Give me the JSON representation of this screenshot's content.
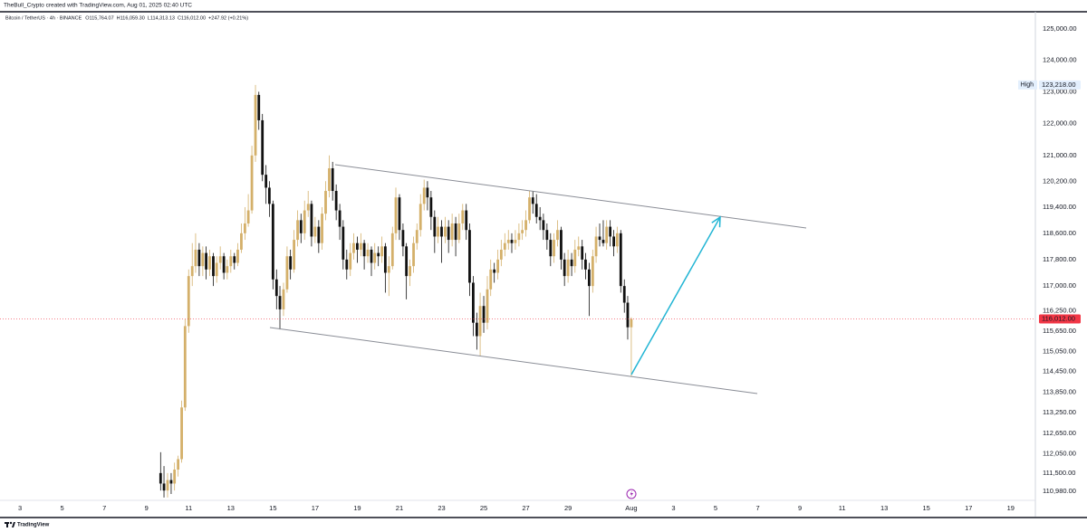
{
  "header": "TheBull_Crypto created with TradingView.com, Aug 01, 2025 02:40 UTC",
  "footer": "TradingView",
  "chart_data": {
    "type": "candlestick",
    "title": "Bitcoin / TetherUS · 4h · BINANCE",
    "ohlc_labels": [
      "O115,764.07",
      "H116,059.30",
      "L114,313.13",
      "C116,012.00",
      "+247.92 (+0.21%)"
    ],
    "up_color": "#d4b06a",
    "down_color": "#111111",
    "log_scale": true,
    "grid": false,
    "xlim": [
      2.05,
      51.17
    ],
    "xticks": [
      3,
      5,
      7,
      9,
      11,
      13,
      15,
      17,
      19,
      21,
      23,
      25,
      27,
      29,
      {
        "value": 32,
        "label": "Aug"
      },
      {
        "value": 34,
        "label": "3"
      },
      {
        "value": 36,
        "label": "5"
      },
      {
        "value": 38,
        "label": "7"
      },
      {
        "value": 40,
        "label": "9"
      },
      {
        "value": 42,
        "label": "11"
      },
      {
        "value": 44,
        "label": "13"
      },
      {
        "value": 46,
        "label": "15"
      },
      {
        "value": 48,
        "label": "17"
      },
      {
        "value": 50,
        "label": "19"
      }
    ],
    "ylim": [
      110720,
      125530
    ],
    "yticks": [
      {
        "value": 125000,
        "label": "125,000.00"
      },
      {
        "value": 124000,
        "label": "124,000.00"
      },
      {
        "value": 123000,
        "label": "123,000.00"
      },
      {
        "value": 122000,
        "label": "122,000.00"
      },
      {
        "value": 121000,
        "label": "121,000.00"
      },
      {
        "value": 120200,
        "label": "120,200.00"
      },
      {
        "value": 119400,
        "label": "119,400.00"
      },
      {
        "value": 118600,
        "label": "118,600.00"
      },
      {
        "value": 117800,
        "label": "117,800.00"
      },
      {
        "value": 117000,
        "label": "117,000.00"
      },
      {
        "value": 116250,
        "label": "116,250.00"
      },
      {
        "value": 115650,
        "label": "115,650.00"
      },
      {
        "value": 115050,
        "label": "115,050.00"
      },
      {
        "value": 114450,
        "label": "114,450.00"
      },
      {
        "value": 113850,
        "label": "113,850.00"
      },
      {
        "value": 113250,
        "label": "113,250.00"
      },
      {
        "value": 112650,
        "label": "112,650.00"
      },
      {
        "value": 112050,
        "label": "112,050.00"
      },
      {
        "value": 111500,
        "label": "111,500.00"
      },
      {
        "value": 110980,
        "label": "110,980.00"
      }
    ],
    "price_markers": [
      {
        "name": "High",
        "value": 123218,
        "label": "123,218.00",
        "color": "#e3effd",
        "text_color": "#131722"
      },
      {
        "value": 116012,
        "label": "116,012.00",
        "color": "#f23645",
        "text_color": "#ffffff"
      }
    ],
    "x": [
      9.67,
      9.83,
      10,
      10.17,
      10.33,
      10.5,
      10.67,
      10.83,
      11,
      11.17,
      11.33,
      11.5,
      11.67,
      11.83,
      12,
      12.17,
      12.33,
      12.5,
      12.67,
      12.83,
      13,
      13.17,
      13.33,
      13.5,
      13.67,
      13.83,
      14,
      14.17,
      14.33,
      14.5,
      14.67,
      14.83,
      15,
      15.17,
      15.33,
      15.5,
      15.67,
      15.83,
      16,
      16.17,
      16.33,
      16.5,
      16.67,
      16.83,
      17,
      17.17,
      17.33,
      17.5,
      17.67,
      17.83,
      18,
      18.17,
      18.33,
      18.5,
      18.67,
      18.83,
      19,
      19.17,
      19.33,
      19.5,
      19.67,
      19.83,
      20,
      20.17,
      20.33,
      20.5,
      20.67,
      20.83,
      21,
      21.17,
      21.33,
      21.5,
      21.67,
      21.83,
      22,
      22.17,
      22.33,
      22.5,
      22.67,
      22.83,
      23,
      23.17,
      23.33,
      23.5,
      23.67,
      23.83,
      24,
      24.17,
      24.33,
      24.5,
      24.67,
      24.83,
      25,
      25.17,
      25.33,
      25.5,
      25.67,
      25.83,
      26,
      26.17,
      26.33,
      26.5,
      26.67,
      26.83,
      27,
      27.17,
      27.33,
      27.5,
      27.67,
      27.83,
      28,
      28.17,
      28.33,
      28.5,
      28.67,
      28.83,
      29,
      29.17,
      29.33,
      29.5,
      29.67,
      29.83,
      30,
      30.17,
      30.33,
      30.5,
      30.67,
      30.83,
      31,
      31.17,
      31.33,
      31.5,
      31.67,
      31.83,
      32
    ],
    "values": [
      [
        111500,
        112100,
        111000,
        111200
      ],
      [
        111200,
        111700,
        110800,
        111000
      ],
      [
        111000,
        111500,
        110800,
        111300
      ],
      [
        111300,
        111500,
        110900,
        111200
      ],
      [
        111200,
        111800,
        111000,
        111600
      ],
      [
        111600,
        112000,
        111400,
        111900
      ],
      [
        111900,
        113600,
        111800,
        113400
      ],
      [
        113400,
        116000,
        113300,
        115800
      ],
      [
        115800,
        117500,
        115600,
        117300
      ],
      [
        117300,
        118300,
        117000,
        117600
      ],
      [
        117600,
        118600,
        117400,
        118100
      ],
      [
        118100,
        118300,
        117300,
        117600
      ],
      [
        117600,
        118200,
        117300,
        118000
      ],
      [
        118000,
        118200,
        117200,
        117500
      ],
      [
        117500,
        118100,
        117300,
        117900
      ],
      [
        117900,
        118000,
        117000,
        117300
      ],
      [
        117300,
        117900,
        117100,
        117700
      ],
      [
        117700,
        118200,
        117500,
        117900
      ],
      [
        117900,
        118000,
        117200,
        117400
      ],
      [
        117400,
        117800,
        117200,
        117600
      ],
      [
        117600,
        118100,
        117400,
        117900
      ],
      [
        117900,
        118000,
        117500,
        117700
      ],
      [
        117700,
        118300,
        117600,
        118100
      ],
      [
        118100,
        118900,
        118000,
        118600
      ],
      [
        118600,
        119400,
        118400,
        118900
      ],
      [
        118900,
        119800,
        118800,
        119300
      ],
      [
        119300,
        121300,
        119200,
        121000
      ],
      [
        121000,
        123218,
        120800,
        122900
      ],
      [
        122900,
        123000,
        121800,
        122100
      ],
      [
        122100,
        122300,
        120200,
        120400
      ],
      [
        120400,
        120700,
        119500,
        120000
      ],
      [
        120000,
        120200,
        119100,
        119500
      ],
      [
        119500,
        119600,
        116900,
        117200
      ],
      [
        117200,
        117500,
        116300,
        116700
      ],
      [
        116700,
        117000,
        115700,
        116300
      ],
      [
        116300,
        117100,
        116100,
        116900
      ],
      [
        116900,
        118200,
        116800,
        117900
      ],
      [
        117900,
        118100,
        117200,
        117500
      ],
      [
        117500,
        118700,
        117400,
        118400
      ],
      [
        118400,
        119300,
        118200,
        119000
      ],
      [
        119000,
        119200,
        118300,
        118600
      ],
      [
        118600,
        119600,
        118400,
        119300
      ],
      [
        119300,
        119900,
        119100,
        119500
      ],
      [
        119500,
        119600,
        118200,
        118500
      ],
      [
        118500,
        119100,
        118300,
        118800
      ],
      [
        118800,
        119000,
        118000,
        118300
      ],
      [
        118300,
        119400,
        118100,
        119200
      ],
      [
        119200,
        120200,
        119000,
        119900
      ],
      [
        119900,
        121000,
        119700,
        120600
      ],
      [
        120600,
        120800,
        119600,
        119900
      ],
      [
        119900,
        120100,
        119000,
        119300
      ],
      [
        119300,
        119500,
        118400,
        118800
      ],
      [
        118800,
        119000,
        117500,
        117800
      ],
      [
        117800,
        118100,
        117200,
        117500
      ],
      [
        117500,
        118300,
        117300,
        118000
      ],
      [
        118000,
        118600,
        117800,
        118300
      ],
      [
        118300,
        118500,
        117700,
        118100
      ],
      [
        118100,
        118600,
        117900,
        118300
      ],
      [
        118300,
        118400,
        117500,
        117900
      ],
      [
        117900,
        118300,
        117700,
        118100
      ],
      [
        118100,
        118200,
        117300,
        117700
      ],
      [
        117700,
        118300,
        117500,
        118000
      ],
      [
        118000,
        118200,
        117600,
        117900
      ],
      [
        117900,
        118500,
        117700,
        118200
      ],
      [
        118200,
        118300,
        116800,
        117400
      ],
      [
        117400,
        117900,
        116700,
        117600
      ],
      [
        117600,
        118800,
        117500,
        118600
      ],
      [
        118600,
        120000,
        118400,
        119700
      ],
      [
        119700,
        119800,
        118400,
        118700
      ],
      [
        118700,
        118900,
        117900,
        118200
      ],
      [
        118200,
        118300,
        116600,
        117300
      ],
      [
        117300,
        117800,
        117000,
        117600
      ],
      [
        117600,
        118500,
        117400,
        118300
      ],
      [
        118300,
        118900,
        118100,
        118700
      ],
      [
        118700,
        119800,
        118500,
        119500
      ],
      [
        119500,
        120250,
        119300,
        120000
      ],
      [
        120000,
        120200,
        119300,
        119700
      ],
      [
        119700,
        119900,
        118700,
        119100
      ],
      [
        119100,
        119300,
        118000,
        118500
      ],
      [
        118500,
        119100,
        118300,
        118800
      ],
      [
        118800,
        119000,
        117700,
        118500
      ],
      [
        118500,
        119100,
        118300,
        118800
      ],
      [
        118800,
        119000,
        118000,
        118400
      ],
      [
        118400,
        119200,
        118200,
        118900
      ],
      [
        118900,
        119100,
        117900,
        118400
      ],
      [
        118400,
        119200,
        118300,
        118900
      ],
      [
        118900,
        119500,
        118700,
        119300
      ],
      [
        119300,
        119500,
        118400,
        118700
      ],
      [
        118700,
        118900,
        116700,
        117100
      ],
      [
        117100,
        117300,
        115500,
        115900
      ],
      [
        115900,
        116200,
        115100,
        115500
      ],
      [
        115500,
        116800,
        114900,
        116400
      ],
      [
        116400,
        116700,
        115600,
        115900
      ],
      [
        115900,
        117300,
        115700,
        116900
      ],
      [
        116900,
        117800,
        116700,
        117500
      ],
      [
        117500,
        117700,
        117100,
        117400
      ],
      [
        117400,
        118100,
        117200,
        117800
      ],
      [
        117800,
        118400,
        117600,
        118100
      ],
      [
        118100,
        118600,
        117900,
        118300
      ],
      [
        118300,
        118700,
        118100,
        118400
      ],
      [
        118400,
        118600,
        118000,
        118300
      ],
      [
        118300,
        118700,
        118100,
        118400
      ],
      [
        118400,
        118900,
        118200,
        118600
      ],
      [
        118600,
        119000,
        118400,
        118700
      ],
      [
        118700,
        119300,
        118500,
        119000
      ],
      [
        119000,
        119900,
        118900,
        119700
      ],
      [
        119700,
        119900,
        119200,
        119500
      ],
      [
        119500,
        119800,
        118900,
        119100
      ],
      [
        119100,
        119400,
        118700,
        119000
      ],
      [
        119000,
        119200,
        118400,
        118700
      ],
      [
        118700,
        118900,
        118100,
        118400
      ],
      [
        118400,
        118600,
        117600,
        117900
      ],
      [
        117900,
        118600,
        117700,
        118400
      ],
      [
        118400,
        119000,
        118200,
        118700
      ],
      [
        118700,
        118800,
        117500,
        117800
      ],
      [
        117800,
        118000,
        117000,
        117300
      ],
      [
        117300,
        118100,
        117100,
        117800
      ],
      [
        117800,
        118000,
        117300,
        117600
      ],
      [
        117600,
        118400,
        117400,
        118100
      ],
      [
        118100,
        118500,
        117900,
        118200
      ],
      [
        118200,
        118400,
        117500,
        117800
      ],
      [
        117800,
        118000,
        117200,
        117500
      ],
      [
        117500,
        117700,
        116100,
        117000
      ],
      [
        117000,
        118100,
        116800,
        117900
      ],
      [
        117900,
        118800,
        117700,
        118500
      ],
      [
        118500,
        118900,
        118200,
        118400
      ],
      [
        118400,
        119000,
        118200,
        118300
      ],
      [
        118300,
        119000,
        118100,
        118800
      ],
      [
        118800,
        119000,
        118200,
        118500
      ],
      [
        118500,
        118700,
        117900,
        118200
      ],
      [
        118200,
        118800,
        118000,
        118600
      ],
      [
        118600,
        118700,
        116800,
        117000
      ],
      [
        117000,
        117200,
        116200,
        116500
      ],
      [
        116500,
        116700,
        115400,
        115764.07
      ],
      [
        115764.07,
        116059.3,
        114313.13,
        116012
      ]
    ]
  }
}
